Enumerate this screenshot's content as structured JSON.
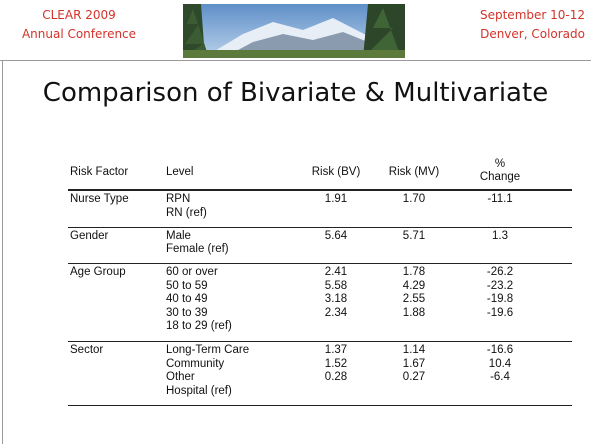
{
  "header": {
    "left": [
      "CLEAR 2009",
      "Annual Conference"
    ],
    "right": [
      "September 10-12",
      "Denver, Colorado"
    ]
  },
  "title": "Comparison of Bivariate & Multivariate",
  "table": {
    "columns": [
      "Risk Factor",
      "Level",
      "Risk (BV)",
      "Risk (MV)",
      "% Change"
    ],
    "groups": [
      {
        "factor": "Nurse Type",
        "rows": [
          {
            "level": "RPN",
            "bv": "1.91",
            "mv": "1.70",
            "change": "-11.1"
          },
          {
            "level": "RN (ref)"
          }
        ]
      },
      {
        "factor": "Gender",
        "rows": [
          {
            "level": "Male",
            "bv": "5.64",
            "mv": "5.71",
            "change": "1.3"
          },
          {
            "level": "Female (ref)"
          }
        ]
      },
      {
        "factor": "Age Group",
        "rows": [
          {
            "level": "60 or over",
            "bv": "2.41",
            "mv": "1.78",
            "change": "-26.2"
          },
          {
            "level": "50 to 59",
            "bv": "5.58",
            "mv": "4.29",
            "change": "-23.2"
          },
          {
            "level": "40 to 49",
            "bv": "3.18",
            "mv": "2.55",
            "change": "-19.8"
          },
          {
            "level": "30 to 39",
            "bv": "2.34",
            "mv": "1.88",
            "change": "-19.6"
          },
          {
            "level": "18 to 29 (ref)"
          }
        ]
      },
      {
        "factor": "Sector",
        "rows": [
          {
            "level": "Long-Term Care",
            "bv": "1.37",
            "mv": "1.14",
            "change": "-16.6"
          },
          {
            "level": "Community",
            "bv": "1.52",
            "mv": "1.67",
            "change": "10.4"
          },
          {
            "level": "Other",
            "bv": "0.28",
            "mv": "0.27",
            "change": "-6.4"
          },
          {
            "level": "Hospital (ref)"
          }
        ]
      }
    ]
  }
}
